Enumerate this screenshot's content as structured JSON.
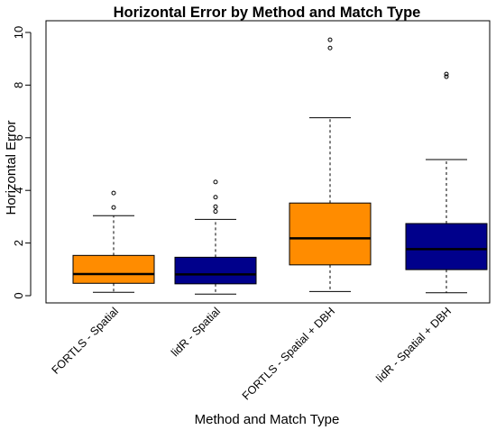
{
  "chart_data": {
    "type": "boxplot",
    "title": "Horizontal Error by Method and Match Type",
    "xlabel": "Method and Match Type",
    "ylabel": "Horizontal Error",
    "ylim": [
      0,
      10
    ],
    "yticks": [
      0,
      2,
      4,
      6,
      8,
      10
    ],
    "categories": [
      "FORTLS - Spatial",
      "lidR - Spatial",
      "FORTLS - Spatial + DBH",
      "lidR - Spatial + DBH"
    ],
    "box_colors": [
      "#FF8C00",
      "#00008B",
      "#FF8C00",
      "#00008B"
    ],
    "boxes": [
      {
        "whisker_low": 0.13,
        "q1": 0.47,
        "median": 0.82,
        "q3": 1.53,
        "whisker_high": 3.04,
        "outliers": [
          3.35,
          3.9
        ]
      },
      {
        "whisker_low": 0.06,
        "q1": 0.45,
        "median": 0.81,
        "q3": 1.46,
        "whisker_high": 2.9,
        "outliers": [
          3.2,
          3.38,
          3.74,
          4.32
        ]
      },
      {
        "whisker_low": 0.16,
        "q1": 1.17,
        "median": 2.18,
        "q3": 3.52,
        "whisker_high": 6.76,
        "outliers": [
          9.41,
          9.72
        ]
      },
      {
        "whisker_low": 0.11,
        "q1": 0.99,
        "median": 1.77,
        "q3": 2.74,
        "whisker_high": 5.17,
        "outliers": [
          8.32,
          8.42
        ]
      }
    ],
    "grid": false,
    "legend": "none"
  }
}
